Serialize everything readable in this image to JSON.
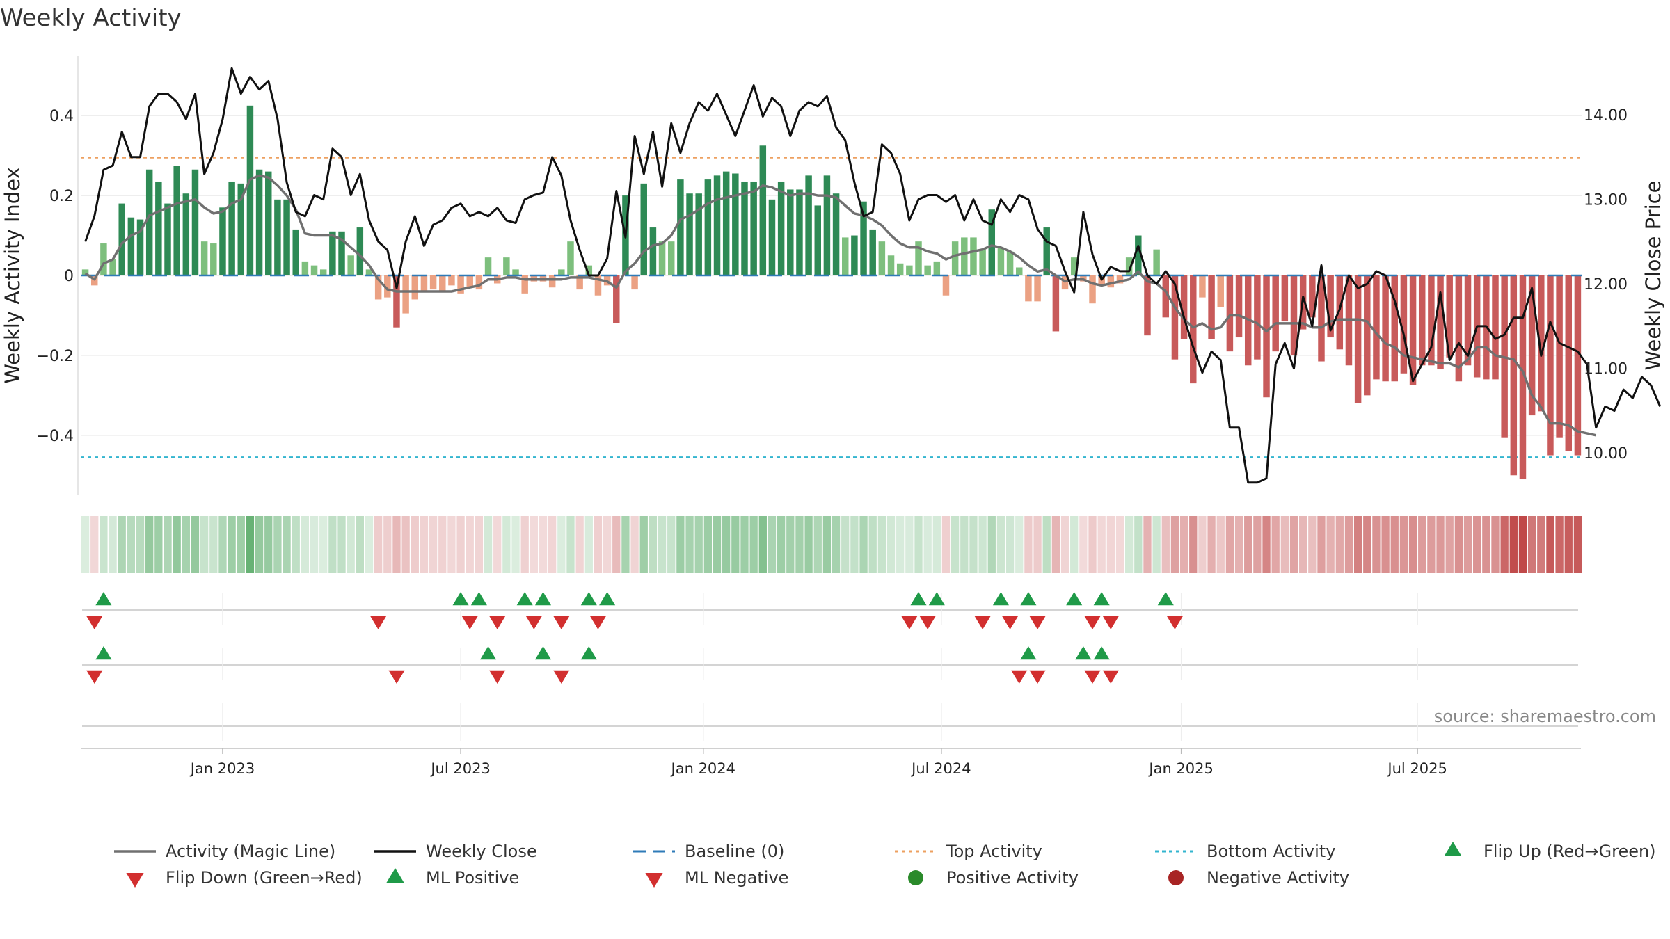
{
  "title": "Weekly Activity",
  "source": "source: sharemaestro.com",
  "chart_data": {
    "type": "bar",
    "title": "Weekly Activity",
    "ylabel_left": "Weekly Activity Index",
    "ylabel_right": "Weekly Close Price",
    "ylim_left": [
      -0.55,
      0.55
    ],
    "ylim_right": [
      9.5,
      14.7
    ],
    "left_ticks": [
      {
        "v": 0.4,
        "label": "0.4"
      },
      {
        "v": 0.2,
        "label": "0.2"
      },
      {
        "v": 0,
        "label": "0"
      },
      {
        "v": -0.2,
        "label": "−0.2"
      },
      {
        "v": -0.4,
        "label": "−0.4"
      }
    ],
    "right_ticks": [
      {
        "v": 14.0,
        "label": "14.00"
      },
      {
        "v": 13.0,
        "label": "13.00"
      },
      {
        "v": 12.0,
        "label": "12.00"
      },
      {
        "v": 11.0,
        "label": "11.00"
      },
      {
        "v": 10.0,
        "label": "10.00"
      }
    ],
    "x_ticks": [
      {
        "week": 15,
        "label": "Jan 2023"
      },
      {
        "week": 41,
        "label": "Jul 2023"
      },
      {
        "week": 67.5,
        "label": "Jan 2024"
      },
      {
        "week": 93.5,
        "label": "Jul 2024"
      },
      {
        "week": 119.7,
        "label": "Jan 2025"
      },
      {
        "week": 145.5,
        "label": "Jul 2025"
      }
    ],
    "top_activity": 0.295,
    "bottom_activity": -0.455,
    "activity": [
      0.015,
      -0.025,
      0.08,
      0.04,
      0.18,
      0.145,
      0.14,
      0.265,
      0.235,
      0.18,
      0.275,
      0.205,
      0.265,
      0.085,
      0.08,
      0.17,
      0.235,
      0.23,
      0.425,
      0.265,
      0.26,
      0.19,
      0.19,
      0.115,
      0.035,
      0.025,
      0.015,
      0.11,
      0.11,
      0.05,
      0.12,
      0.015,
      -0.06,
      -0.055,
      -0.13,
      -0.095,
      -0.06,
      -0.04,
      -0.035,
      -0.04,
      -0.025,
      -0.045,
      -0.03,
      -0.035,
      0.045,
      -0.02,
      0.045,
      0.015,
      -0.045,
      -0.015,
      -0.015,
      -0.03,
      0.015,
      0.085,
      -0.035,
      0.025,
      -0.05,
      -0.025,
      -0.12,
      0.2,
      -0.035,
      0.23,
      0.12,
      0.085,
      0.085,
      0.24,
      0.205,
      0.205,
      0.24,
      0.25,
      0.26,
      0.255,
      0.235,
      0.235,
      0.325,
      0.19,
      0.235,
      0.215,
      0.215,
      0.25,
      0.175,
      0.25,
      0.205,
      0.095,
      0.1,
      0.185,
      0.115,
      0.085,
      0.05,
      0.03,
      0.025,
      0.085,
      0.025,
      0.035,
      -0.05,
      0.085,
      0.095,
      0.095,
      0.065,
      0.165,
      0.07,
      0.06,
      0.02,
      -0.065,
      -0.065,
      0.12,
      -0.14,
      -0.035,
      0.045,
      -0.015,
      -0.07,
      -0.025,
      -0.03,
      -0.02,
      0.045,
      0.1,
      -0.15,
      0.065,
      -0.105,
      -0.21,
      -0.16,
      -0.27,
      -0.055,
      -0.16,
      -0.08,
      -0.19,
      -0.155,
      -0.225,
      -0.21,
      -0.305,
      -0.19,
      -0.115,
      -0.2,
      -0.135,
      -0.105,
      -0.215,
      -0.155,
      -0.185,
      -0.225,
      -0.32,
      -0.3,
      -0.26,
      -0.265,
      -0.265,
      -0.245,
      -0.275,
      -0.225,
      -0.225,
      -0.235,
      -0.205,
      -0.265,
      -0.225,
      -0.255,
      -0.26,
      -0.26,
      -0.405,
      -0.5,
      -0.51,
      -0.35,
      -0.34,
      -0.45,
      -0.405,
      -0.44,
      -0.45
    ],
    "magic_line": [
      0.005,
      -0.01,
      0.03,
      0.04,
      0.08,
      0.1,
      0.11,
      0.15,
      0.16,
      0.17,
      0.18,
      0.185,
      0.19,
      0.17,
      0.155,
      0.16,
      0.18,
      0.19,
      0.24,
      0.25,
      0.245,
      0.225,
      0.2,
      0.165,
      0.105,
      0.1,
      0.1,
      0.1,
      0.09,
      0.07,
      0.05,
      0.025,
      -0.01,
      -0.035,
      -0.04,
      -0.04,
      -0.04,
      -0.04,
      -0.04,
      -0.04,
      -0.04,
      -0.035,
      -0.03,
      -0.025,
      -0.01,
      -0.01,
      -0.005,
      -0.005,
      -0.01,
      -0.01,
      -0.01,
      -0.01,
      -0.01,
      -0.005,
      -0.005,
      -0.005,
      -0.01,
      -0.015,
      -0.03,
      0.01,
      0.03,
      0.06,
      0.075,
      0.08,
      0.1,
      0.14,
      0.15,
      0.165,
      0.18,
      0.19,
      0.195,
      0.2,
      0.205,
      0.21,
      0.225,
      0.22,
      0.21,
      0.2,
      0.205,
      0.205,
      0.2,
      0.2,
      0.195,
      0.175,
      0.155,
      0.15,
      0.14,
      0.125,
      0.1,
      0.08,
      0.07,
      0.07,
      0.06,
      0.055,
      0.04,
      0.05,
      0.055,
      0.06,
      0.065,
      0.075,
      0.07,
      0.06,
      0.045,
      0.025,
      0.01,
      0.015,
      0.0,
      -0.015,
      -0.01,
      -0.01,
      -0.02,
      -0.025,
      -0.02,
      -0.015,
      -0.01,
      0.01,
      -0.015,
      -0.02,
      -0.04,
      -0.08,
      -0.11,
      -0.13,
      -0.12,
      -0.135,
      -0.13,
      -0.1,
      -0.1,
      -0.11,
      -0.12,
      -0.14,
      -0.12,
      -0.12,
      -0.12,
      -0.12,
      -0.13,
      -0.13,
      -0.115,
      -0.11,
      -0.11,
      -0.11,
      -0.115,
      -0.145,
      -0.17,
      -0.18,
      -0.2,
      -0.205,
      -0.21,
      -0.215,
      -0.22,
      -0.22,
      -0.23,
      -0.21,
      -0.18,
      -0.18,
      -0.2,
      -0.205,
      -0.21,
      -0.24,
      -0.3,
      -0.33,
      -0.37,
      -0.37,
      -0.375,
      -0.39,
      -0.395,
      -0.4
    ],
    "weekly_close": [
      12.5,
      12.8,
      13.35,
      13.4,
      13.8,
      13.5,
      13.5,
      14.1,
      14.25,
      14.25,
      14.15,
      13.95,
      14.25,
      13.3,
      13.55,
      13.95,
      14.55,
      14.25,
      14.45,
      14.3,
      14.4,
      13.95,
      13.2,
      12.85,
      12.8,
      13.05,
      13.0,
      13.6,
      13.5,
      13.05,
      13.3,
      12.75,
      12.5,
      12.4,
      11.95,
      12.5,
      12.8,
      12.45,
      12.7,
      12.75,
      12.9,
      12.95,
      12.8,
      12.85,
      12.8,
      12.9,
      12.75,
      12.72,
      13.0,
      13.05,
      13.08,
      13.5,
      13.28,
      12.75,
      12.4,
      12.1,
      12.1,
      12.3,
      13.1,
      12.55,
      13.75,
      13.3,
      13.8,
      13.15,
      13.9,
      13.55,
      13.9,
      14.15,
      14.05,
      14.25,
      14.0,
      13.75,
      14.05,
      14.35,
      13.98,
      14.2,
      14.1,
      13.75,
      14.05,
      14.15,
      14.1,
      14.22,
      13.85,
      13.7,
      13.2,
      12.8,
      12.85,
      13.65,
      13.55,
      13.3,
      12.75,
      13.0,
      13.05,
      13.05,
      12.97,
      13.05,
      12.75,
      13.0,
      12.75,
      12.7,
      13.0,
      12.85,
      13.05,
      13.0,
      12.65,
      12.5,
      12.45,
      12.15,
      11.9,
      12.85,
      12.35,
      12.05,
      12.2,
      12.15,
      12.15,
      12.45,
      12.1,
      12.0,
      12.15,
      12.0,
      11.6,
      11.25,
      10.95,
      11.2,
      11.1,
      10.3,
      10.3,
      9.65,
      9.65,
      9.7,
      11.05,
      11.3,
      11.0,
      11.85,
      11.5,
      12.22,
      11.45,
      11.7,
      12.1,
      11.95,
      12.0,
      12.15,
      12.1,
      11.8,
      11.4,
      10.85,
      11.05,
      11.25,
      11.9,
      11.1,
      11.3,
      11.15,
      11.5,
      11.5,
      11.35,
      11.4,
      11.6,
      11.6,
      11.95,
      11.15,
      11.55,
      11.3,
      11.25,
      11.2,
      11.05,
      10.3,
      10.55,
      10.5,
      10.75,
      10.65,
      10.9,
      10.8,
      10.55
    ],
    "flip_up": [
      2,
      41,
      43,
      48,
      50,
      55,
      57,
      91,
      93,
      100,
      103,
      108,
      111,
      118
    ],
    "flip_down": [
      1,
      32,
      42,
      45,
      49,
      52,
      56,
      90,
      92,
      98,
      101,
      104,
      110,
      112,
      119
    ],
    "ml_positive": [
      2,
      44,
      50,
      55,
      103,
      109,
      111
    ],
    "ml_negative": [
      1,
      34,
      45,
      52,
      102,
      104,
      110,
      112
    ],
    "colors": {
      "pos_strong": "#2e8a55",
      "pos_weak": "#7dbf7d",
      "neg_strong": "#c85a5a",
      "neg_weak": "#eba183",
      "magic_line": "#707070",
      "weekly_close": "#111111",
      "baseline": "#2f7bb8",
      "top_activity": "#eda060",
      "bottom_activity": "#33b5cf",
      "flip_up": "#1f9a48",
      "flip_down": "#d22f2f",
      "positive_activity": "#2a8a2a",
      "negative_activity": "#a82424"
    },
    "legend": [
      {
        "key": "magic",
        "label": "Activity (Magic Line)"
      },
      {
        "key": "close",
        "label": "Weekly Close"
      },
      {
        "key": "baseline",
        "label": "Baseline (0)"
      },
      {
        "key": "top",
        "label": "Top Activity"
      },
      {
        "key": "bottom",
        "label": "Bottom Activity"
      },
      {
        "key": "flipup",
        "label": "Flip Up (Red→Green)"
      },
      {
        "key": "flipdown",
        "label": "Flip Down (Green→Red)"
      },
      {
        "key": "mlpos",
        "label": "ML Positive"
      },
      {
        "key": "mlneg",
        "label": "ML Negative"
      },
      {
        "key": "posact",
        "label": "Positive Activity"
      },
      {
        "key": "negact",
        "label": "Negative Activity"
      }
    ]
  }
}
